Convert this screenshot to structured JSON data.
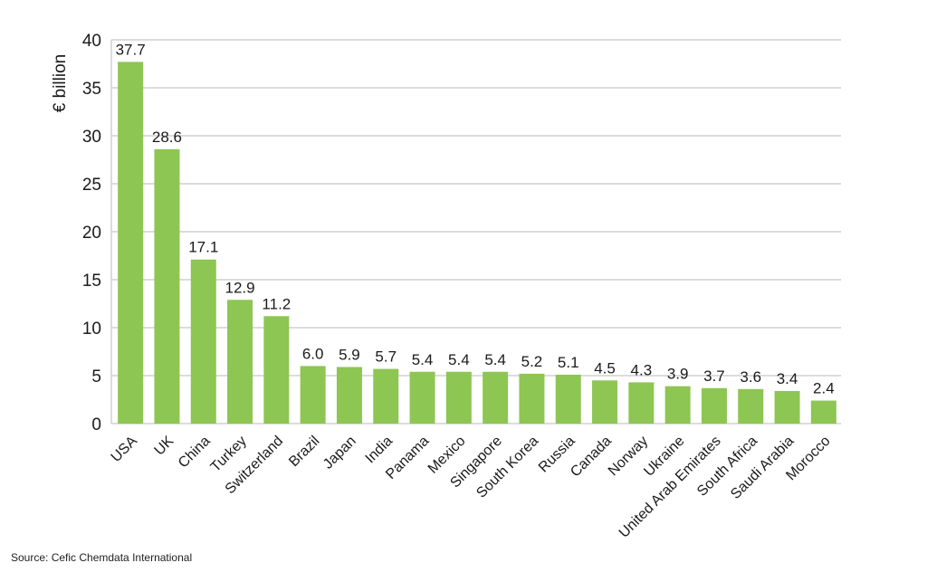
{
  "chart_data": {
    "type": "bar",
    "title": "",
    "xlabel": "",
    "ylabel": "€ billion",
    "ylim": [
      0,
      40
    ],
    "yticks": [
      0,
      5,
      10,
      15,
      20,
      25,
      30,
      35,
      40
    ],
    "grid": true,
    "bar_color": "#8dc652",
    "categories": [
      "USA",
      "UK",
      "China",
      "Turkey",
      "Switzerland",
      "Brazil",
      "Japan",
      "India",
      "Panama",
      "Mexico",
      "Singapore",
      "South Korea",
      "Russia",
      "Canada",
      "Norway",
      "Ukraine",
      "United Arab Emirates",
      "South Africa",
      "Saudi Arabia",
      "Morocco"
    ],
    "values": [
      37.7,
      28.6,
      17.1,
      12.9,
      11.2,
      6.0,
      5.9,
      5.7,
      5.4,
      5.4,
      5.4,
      5.2,
      5.1,
      4.5,
      4.3,
      3.9,
      3.7,
      3.6,
      3.4,
      2.4
    ],
    "data_labels": [
      "37.7",
      "28.6",
      "17.1",
      "12.9",
      "11.2",
      "6.0",
      "5.9",
      "5.7",
      "5.4",
      "5.4",
      "5.4",
      "5.2",
      "5.1",
      "4.5",
      "4.3",
      "3.9",
      "3.7",
      "3.6",
      "3.4",
      "2.4"
    ]
  },
  "source": "Source: Cefic Chemdata International"
}
